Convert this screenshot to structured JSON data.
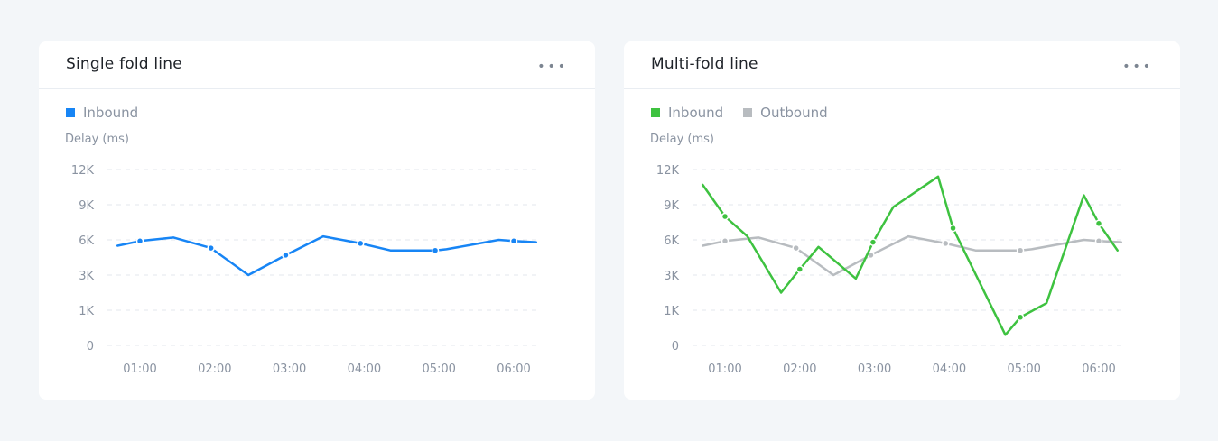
{
  "charts": [
    {
      "title": "Single fold line",
      "more_label": "•••",
      "legend": [
        {
          "name": "Inbound",
          "color": "#1785f5"
        }
      ],
      "chart_data": {
        "type": "line",
        "ylabel": "Delay (ms)",
        "y_ticks": [
          {
            "label": "12K",
            "pos": 0
          },
          {
            "label": "9K",
            "pos": 1
          },
          {
            "label": "6K",
            "pos": 2
          },
          {
            "label": "3K",
            "pos": 3
          },
          {
            "label": "1K",
            "pos": 4
          },
          {
            "label": "0",
            "pos": 5
          }
        ],
        "x_ticks": [
          "01:00",
          "02:00",
          "03:00",
          "04:00",
          "05:00",
          "06:00"
        ],
        "grid": true,
        "series": [
          {
            "name": "Inbound",
            "color": "#1785f5",
            "x": [
              0.7,
              1.0,
              1.45,
              1.95,
              2.45,
              2.95,
              3.45,
              3.95,
              4.35,
              4.95,
              5.1,
              5.8,
              6.0,
              6.3
            ],
            "y": [
              5.5,
              5.9,
              6.2,
              5.3,
              3.0,
              4.7,
              6.3,
              5.7,
              5.1,
              5.1,
              5.2,
              6.0,
              5.9,
              5.8
            ],
            "marker_indices": [
              1,
              3,
              5,
              7,
              9,
              12
            ]
          }
        ]
      }
    },
    {
      "title": "Multi-fold line",
      "more_label": "•••",
      "legend": [
        {
          "name": "Inbound",
          "color": "#3ec240"
        },
        {
          "name": "Outbound",
          "color": "#b8bcc0"
        }
      ],
      "chart_data": {
        "type": "line",
        "ylabel": "Delay (ms)",
        "y_ticks": [
          {
            "label": "12K",
            "pos": 0
          },
          {
            "label": "9K",
            "pos": 1
          },
          {
            "label": "6K",
            "pos": 2
          },
          {
            "label": "3K",
            "pos": 3
          },
          {
            "label": "1K",
            "pos": 4
          },
          {
            "label": "0",
            "pos": 5
          }
        ],
        "x_ticks": [
          "01:00",
          "02:00",
          "03:00",
          "04:00",
          "05:00",
          "06:00"
        ],
        "grid": true,
        "series": [
          {
            "name": "Outbound",
            "color": "#b8bcc0",
            "x": [
              0.7,
              1.0,
              1.45,
              1.95,
              2.45,
              2.95,
              3.45,
              3.95,
              4.35,
              4.95,
              5.1,
              5.8,
              6.0,
              6.3
            ],
            "y": [
              5.5,
              5.9,
              6.2,
              5.3,
              3.0,
              4.7,
              6.3,
              5.7,
              5.1,
              5.1,
              5.2,
              6.0,
              5.9,
              5.8
            ],
            "marker_indices": [
              1,
              3,
              5,
              7,
              9,
              12
            ]
          },
          {
            "name": "Inbound",
            "color": "#3ec240",
            "x": [
              0.7,
              1.0,
              1.3,
              1.75,
              2.0,
              2.25,
              2.75,
              2.98,
              3.25,
              3.85,
              4.05,
              4.75,
              4.95,
              5.3,
              5.8,
              6.0,
              6.25
            ],
            "y": [
              10.7,
              8.0,
              6.3,
              2.0,
              3.5,
              5.4,
              2.8,
              5.8,
              8.8,
              11.4,
              7.0,
              0.3,
              0.8,
              1.4,
              9.8,
              7.4,
              5.1
            ],
            "marker_indices": [
              1,
              4,
              7,
              10,
              12,
              15
            ]
          }
        ]
      }
    }
  ]
}
